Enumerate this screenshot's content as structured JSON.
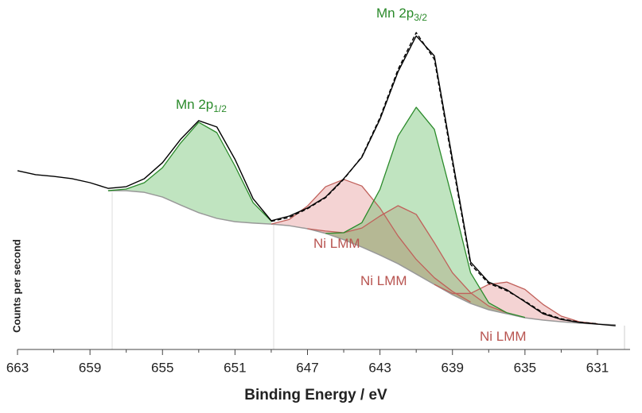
{
  "chart_data": {
    "type": "line",
    "xlabel": "Binding Energy / eV",
    "ylabel": "Counts per second",
    "xlim": [
      663,
      629.2
    ],
    "ylim": [
      0,
      100
    ],
    "xticks": [
      663,
      659,
      655,
      651,
      647,
      643,
      639,
      635,
      631
    ],
    "xminorticks": [
      661,
      657,
      653,
      649,
      645,
      641,
      637,
      633
    ],
    "x": [
      663,
      662,
      661,
      660,
      659,
      658,
      657,
      656,
      655,
      654,
      653,
      652,
      651,
      650,
      649,
      648,
      647,
      646,
      645,
      644,
      643,
      642,
      641,
      640,
      639,
      638,
      637,
      636,
      635,
      634,
      633,
      632,
      631,
      630
    ],
    "background": {
      "color": "#999999",
      "values": [
        null,
        null,
        null,
        null,
        null,
        47.6,
        47.6,
        47.1,
        45.7,
        43.3,
        41,
        39.3,
        38.3,
        37.9,
        37.6,
        37.1,
        36.2,
        34.8,
        32.9,
        30.7,
        28.3,
        25.7,
        22.6,
        19.5,
        16.4,
        13.8,
        11.9,
        10.7,
        9.5,
        8.8,
        8.3,
        7.9,
        7.6,
        7.4
      ]
    },
    "series": [
      {
        "color": "#c0605a",
        "fill": "rgba(225,140,140,0.38)",
        "values": [
          null,
          null,
          null,
          null,
          null,
          null,
          null,
          null,
          null,
          null,
          null,
          null,
          null,
          null,
          37.6,
          39,
          43,
          48.8,
          51,
          49,
          42.4,
          34,
          27,
          21.5,
          17.4,
          14.2,
          null,
          null,
          null,
          null,
          null,
          null,
          null,
          null
        ]
      },
      {
        "color": "#c0605a",
        "fill": "rgba(225,140,140,0.38)",
        "values": [
          null,
          null,
          null,
          null,
          null,
          null,
          null,
          null,
          null,
          null,
          null,
          null,
          null,
          null,
          null,
          null,
          36.2,
          35.5,
          35,
          36.4,
          40,
          43.1,
          40.5,
          32,
          23,
          17,
          13,
          11,
          null,
          null,
          null,
          null,
          null,
          null
        ]
      },
      {
        "color": "#c0605a",
        "fill": "rgba(225,140,140,0.38)",
        "values": [
          null,
          null,
          null,
          null,
          null,
          null,
          null,
          null,
          null,
          null,
          null,
          null,
          null,
          null,
          null,
          null,
          null,
          null,
          null,
          null,
          null,
          null,
          null,
          19.5,
          16.8,
          16.8,
          19.5,
          20.2,
          18,
          13.5,
          10,
          8.3,
          7.7,
          null
        ]
      },
      {
        "color": "#2a8a2a",
        "fill": "rgba(90,185,90,0.38)",
        "values": [
          null,
          null,
          null,
          null,
          null,
          47.6,
          48.1,
          50,
          54.5,
          61.9,
          68.1,
          65,
          55,
          44,
          38.5,
          null,
          null,
          null,
          null,
          null,
          null,
          null,
          null,
          null,
          null,
          null,
          null,
          null,
          null,
          null,
          null,
          null,
          null,
          null
        ]
      },
      {
        "color": "#2a8a2a",
        "fill": "rgba(90,185,90,0.38)",
        "values": [
          null,
          null,
          null,
          null,
          null,
          null,
          null,
          null,
          null,
          null,
          null,
          null,
          null,
          null,
          null,
          null,
          null,
          34.8,
          35,
          38,
          48,
          64,
          72.6,
          66,
          45,
          23,
          14,
          11,
          9.6,
          null,
          null,
          null,
          null,
          null
        ]
      },
      {
        "color": "#000000",
        "dash": true,
        "values": [
          null,
          null,
          null,
          null,
          null,
          null,
          null,
          null,
          null,
          null,
          null,
          null,
          null,
          null,
          38.4,
          39.6,
          42.2,
          45.5,
          51,
          57.8,
          69.5,
          84,
          95,
          87,
          56,
          25.5,
          19.8,
          17.6,
          14.5,
          11,
          9.2,
          8.2,
          7.7,
          null
        ]
      },
      {
        "color": "#000000",
        "values": [
          53.6,
          52.4,
          51.9,
          51.2,
          50,
          48.3,
          48.8,
          51.2,
          56,
          63,
          68.6,
          66.7,
          57,
          45.2,
          38.6,
          40,
          42.4,
          45.7,
          51.2,
          57.6,
          69,
          83.3,
          94,
          88,
          57,
          26.2,
          20.2,
          17.9,
          14.3,
          10.7,
          9,
          8.1,
          7.6,
          7.1
        ]
      }
    ],
    "annotations": [
      {
        "text": "Mn 2p",
        "sub": "1/2",
        "color": "#2a8a2a"
      },
      {
        "text": "Mn 2p",
        "sub": "3/2",
        "color": "#2a8a2a"
      },
      {
        "text": "Ni LMM",
        "color": "#b85450"
      },
      {
        "text": "Ni LMM",
        "color": "#b85450"
      },
      {
        "text": "Ni LMM",
        "color": "#b85450"
      }
    ]
  }
}
